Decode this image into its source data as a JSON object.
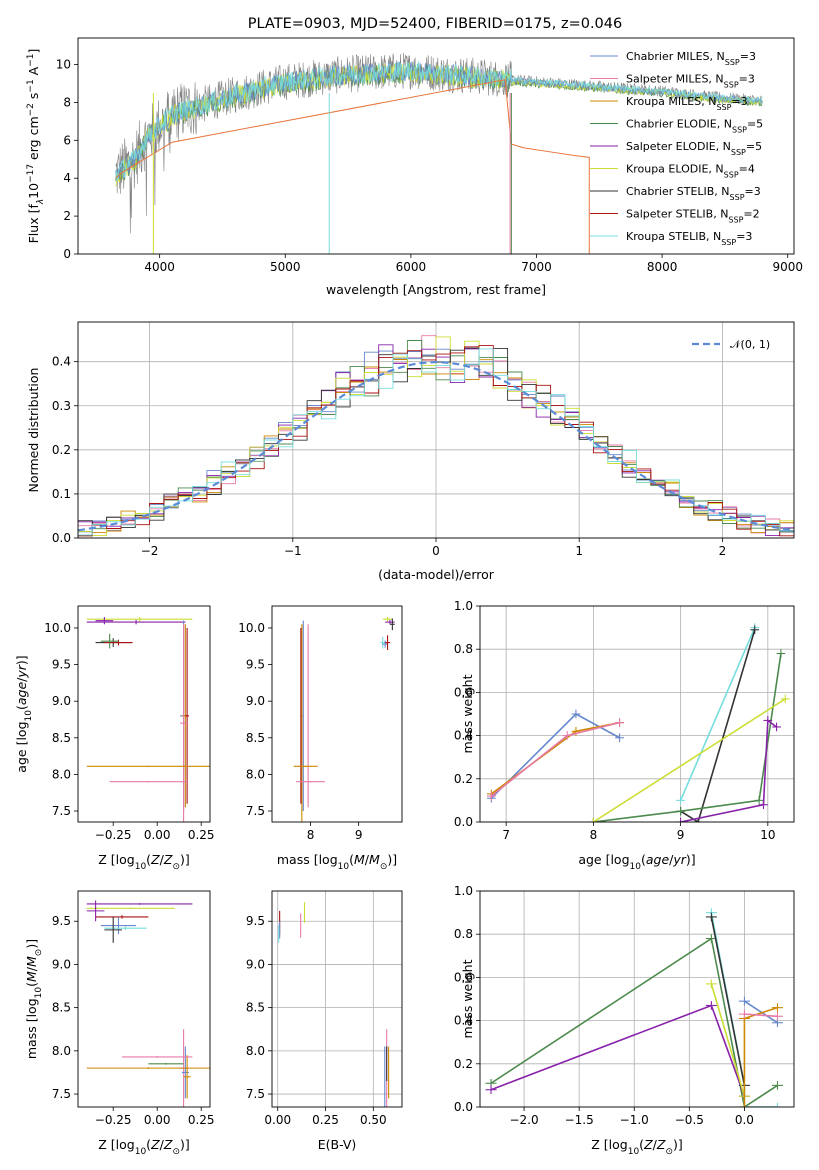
{
  "figure": {
    "title": "PLATE=0903, MJD=52400, FIBERID=0175, z=0.046"
  },
  "legend": [
    {
      "base": "Chabrier MILES, N",
      "sub": "SSP",
      "tail": "=3",
      "color": "#6688cc"
    },
    {
      "base": "Salpeter MILES, N",
      "sub": "SSP",
      "tail": "=3",
      "color": "#e87aa8"
    },
    {
      "base": "Kroupa MILES, N",
      "sub": "SSP",
      "tail": "=3",
      "color": "#cc8800"
    },
    {
      "base": "Chabrier ELODIE, N",
      "sub": "SSP",
      "tail": "=5",
      "color": "#4d8a4d"
    },
    {
      "base": "Salpeter ELODIE, N",
      "sub": "SSP",
      "tail": "=5",
      "color": "#8822aa"
    },
    {
      "base": "Kroupa ELODIE, N",
      "sub": "SSP",
      "tail": "=4",
      "color": "#ccdd33"
    },
    {
      "base": "Chabrier STELIB, N",
      "sub": "SSP",
      "tail": "=3",
      "color": "#333333"
    },
    {
      "base": "Salpeter STELIB, N",
      "sub": "SSP",
      "tail": "=2",
      "color": "#aa1111"
    },
    {
      "base": "Kroupa STELIB, N",
      "sub": "SSP",
      "tail": "=3",
      "color": "#77dddd"
    }
  ],
  "colors": {
    "data_spectrum": "#808080",
    "model_main": "#77dddd",
    "model_orange": "#e8743a",
    "normal_curve": "#5b8bd6"
  },
  "chart_data": [
    {
      "id": "spectrum",
      "type": "line",
      "title": "PLATE=0903, MJD=52400, FIBERID=0175, z=0.046",
      "xlabel": "wavelength [Angstrom, rest frame]",
      "ylabel_parts": [
        "Flux [f",
        "λ",
        "10",
        "−17",
        " erg cm",
        "−2",
        " s",
        "−1",
        " A",
        "−1",
        "]"
      ],
      "xlim": [
        3350,
        9050
      ],
      "ylim": [
        0,
        11.4
      ],
      "xticks": [
        4000,
        5000,
        6000,
        7000,
        8000,
        9000
      ],
      "yticks": [
        0,
        2,
        4,
        6,
        8,
        10
      ],
      "grid": false,
      "legend_position": "top-right",
      "data_envelope": {
        "x": [
          3650,
          3800,
          3900,
          4100,
          4300,
          4600,
          5000,
          5500,
          6000,
          6500,
          6800,
          7200,
          7600,
          8000,
          8400,
          8800
        ],
        "y": [
          4.2,
          5.0,
          6.2,
          7.4,
          7.8,
          8.4,
          9.1,
          9.5,
          9.7,
          9.4,
          9.2,
          9.0,
          8.8,
          8.6,
          8.3,
          8.1
        ]
      },
      "model_truncations": [
        {
          "series": "Salpeter MILES",
          "end": 6790
        },
        {
          "series": "Chabrier ELODIE",
          "end": 6800
        },
        {
          "series": "Kroupa STELIB",
          "continues": true
        }
      ],
      "orange_model": {
        "x": [
          3650,
          3700,
          3900,
          4100,
          6750,
          6800,
          6900,
          7100,
          7300,
          7420
        ],
        "y": [
          4.0,
          4.3,
          5.1,
          5.9,
          9.2,
          5.8,
          5.6,
          5.4,
          5.2,
          5.1
        ]
      }
    },
    {
      "id": "residuals",
      "type": "step",
      "xlabel": "(data-model)/error",
      "ylabel": "Normed distribution",
      "xlim": [
        -2.5,
        2.5
      ],
      "ylim": [
        0,
        0.49
      ],
      "xticks": [
        -2,
        -1,
        0,
        1,
        2
      ],
      "yticks": [
        0.0,
        0.1,
        0.2,
        0.3,
        0.4
      ],
      "grid": true,
      "legend_position": "top-right",
      "normal_label": "𝒩(0, 1)"
    },
    {
      "id": "age_vs_Z",
      "type": "errorbar",
      "xlabel": "Z [log10(Z/Z⊙)]",
      "ylabel": "age  [log10(age/yr)]",
      "xlim": [
        -0.45,
        0.3
      ],
      "ylim": [
        7.35,
        10.3
      ],
      "xticks": [
        -0.25,
        0.0,
        0.25
      ],
      "yticks": [
        7.5,
        8.0,
        8.5,
        9.0,
        9.5,
        10.0
      ],
      "grid": false
    },
    {
      "id": "age_vs_mass",
      "type": "errorbar",
      "xlabel": "mass [log10(M/M⊙)]",
      "ylabel": "",
      "xlim": [
        7.2,
        9.9
      ],
      "ylim": [
        7.35,
        10.3
      ],
      "xticks": [
        8,
        9
      ],
      "yticks": [
        7.5,
        8.0,
        8.5,
        9.0,
        9.5,
        10.0
      ],
      "grid": false
    },
    {
      "id": "weight_vs_age",
      "type": "line",
      "xlabel": "age  [log10(age/yr)]",
      "ylabel": "mass weight",
      "xlim": [
        6.7,
        10.3
      ],
      "ylim": [
        0,
        1
      ],
      "xticks": [
        7,
        8,
        9,
        10
      ],
      "yticks": [
        0.0,
        0.2,
        0.4,
        0.6,
        0.8,
        1.0
      ],
      "grid": true
    },
    {
      "id": "mass_vs_Z",
      "type": "errorbar",
      "xlabel": "Z [log10(Z/Z⊙)]",
      "ylabel": "mass [log10(M/M⊙)]",
      "xlim": [
        -0.45,
        0.3
      ],
      "ylim": [
        7.35,
        9.85
      ],
      "xticks": [
        -0.25,
        0.0,
        0.25
      ],
      "yticks": [
        7.5,
        8.0,
        8.5,
        9.0,
        9.5
      ],
      "grid": false
    },
    {
      "id": "mass_vs_ebv",
      "type": "errorbar",
      "xlabel": "E(B-V)",
      "ylabel": "",
      "xlim": [
        -0.03,
        0.65
      ],
      "ylim": [
        7.35,
        9.85
      ],
      "xticks": [
        0.0,
        0.25,
        0.5
      ],
      "yticks": [
        7.5,
        8.0,
        8.5,
        9.0,
        9.5
      ],
      "grid": true
    },
    {
      "id": "weight_vs_Z",
      "type": "line",
      "xlabel": "Z [log10(Z/Z⊙)]",
      "ylabel": "mass weight",
      "xlim": [
        -2.4,
        0.45
      ],
      "ylim": [
        0,
        1
      ],
      "xticks": [
        -2.0,
        -1.5,
        -1.0,
        -0.5,
        0.0
      ],
      "yticks": [
        0.0,
        0.2,
        0.4,
        0.6,
        0.8,
        1.0
      ],
      "grid": true
    }
  ]
}
